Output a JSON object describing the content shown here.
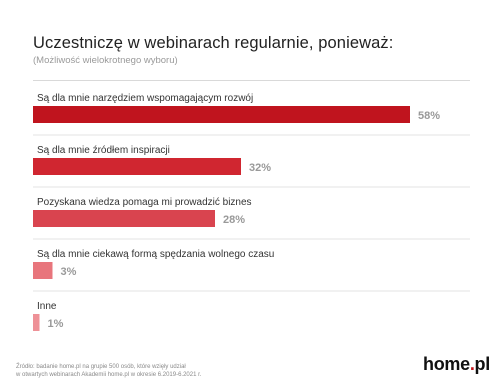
{
  "header": {
    "title": "Uczestniczę w webinarach regularnie, ponieważ:",
    "subtitle": "(Możliwość wielokrotnego wyboru)"
  },
  "chart_data": {
    "type": "bar",
    "orientation": "horizontal",
    "categories": [
      "Są dla mnie narzędziem wspomagającym rozwój",
      "Są dla mnie źródłem inspiracji",
      "Pozyskana wiedza pomaga mi prowadzić biznes",
      "Są dla mnie ciekawą formą spędzania wolnego czasu",
      "Inne"
    ],
    "values": [
      58,
      32,
      28,
      3,
      1
    ],
    "value_labels": [
      "58%",
      "32%",
      "28%",
      "3%",
      "1%"
    ],
    "bar_colors": [
      "#c0141e",
      "#d02630",
      "#d9444f",
      "#e8757c",
      "#ee9197"
    ],
    "xlim": [
      0,
      58
    ],
    "grid": false,
    "legend": "none",
    "title": "Uczestniczę w webinarach regularnie, ponieważ:",
    "subtitle": "(Możliwość wielokrotnego wyboru)"
  },
  "footer": {
    "source_line1": "Źródło: badanie home.pl na grupie 500 osób, które wzięły udział",
    "source_line2": "w otwartych webinarach Akademii home.pl w okresie 6.2019-6.2021 r.",
    "logo_main": "home",
    "logo_dot": ".",
    "logo_tld": "pl"
  }
}
